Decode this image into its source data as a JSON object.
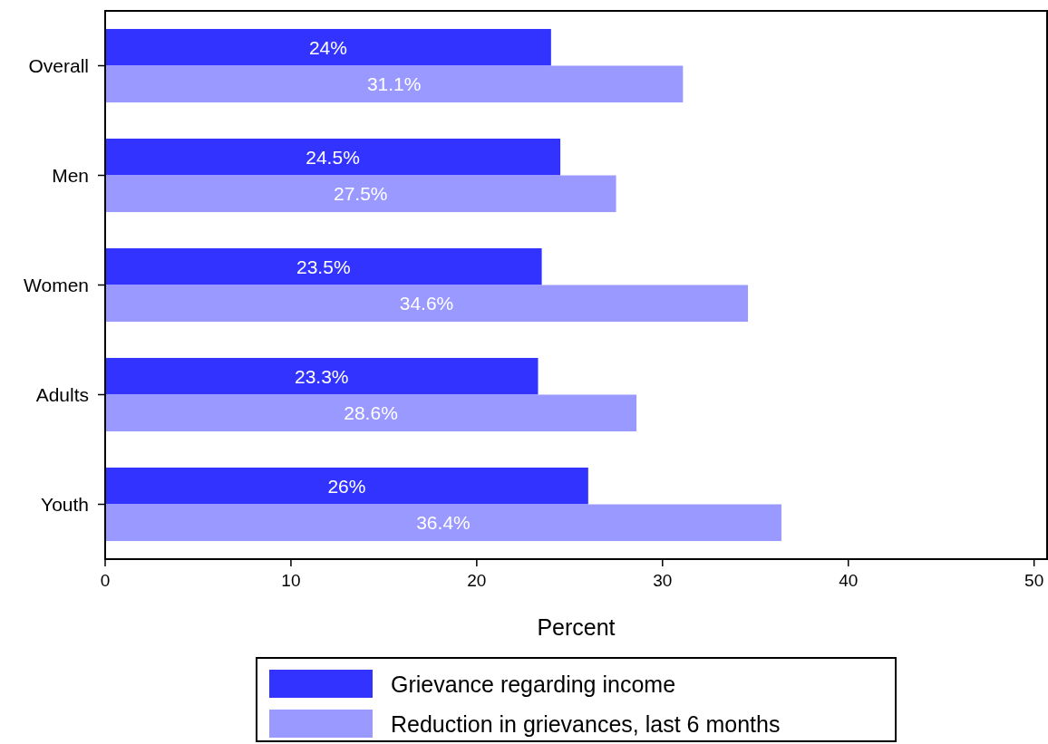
{
  "chart_data": {
    "type": "bar",
    "orientation": "horizontal",
    "categories": [
      "Overall",
      "Men",
      "Women",
      "Adults",
      "Youth"
    ],
    "series": [
      {
        "name": "Grievance regarding income",
        "color": "#3333ff",
        "values": [
          24,
          24.5,
          23.5,
          23.3,
          26
        ],
        "value_labels": [
          "24%",
          "24.5%",
          "23.5%",
          "23.3%",
          "26%"
        ]
      },
      {
        "name": "Reduction in grievances, last 6 months",
        "color": "#9999ff",
        "values": [
          31.1,
          27.5,
          34.6,
          28.6,
          36.4
        ],
        "value_labels": [
          "31.1%",
          "27.5%",
          "34.6%",
          "28.6%",
          "36.4%"
        ]
      }
    ],
    "xlim": [
      0,
      50.7
    ],
    "xticks": [
      0,
      10,
      20,
      30,
      40,
      50
    ],
    "xlabel": "Percent",
    "legend": "bottom",
    "grid": false
  }
}
